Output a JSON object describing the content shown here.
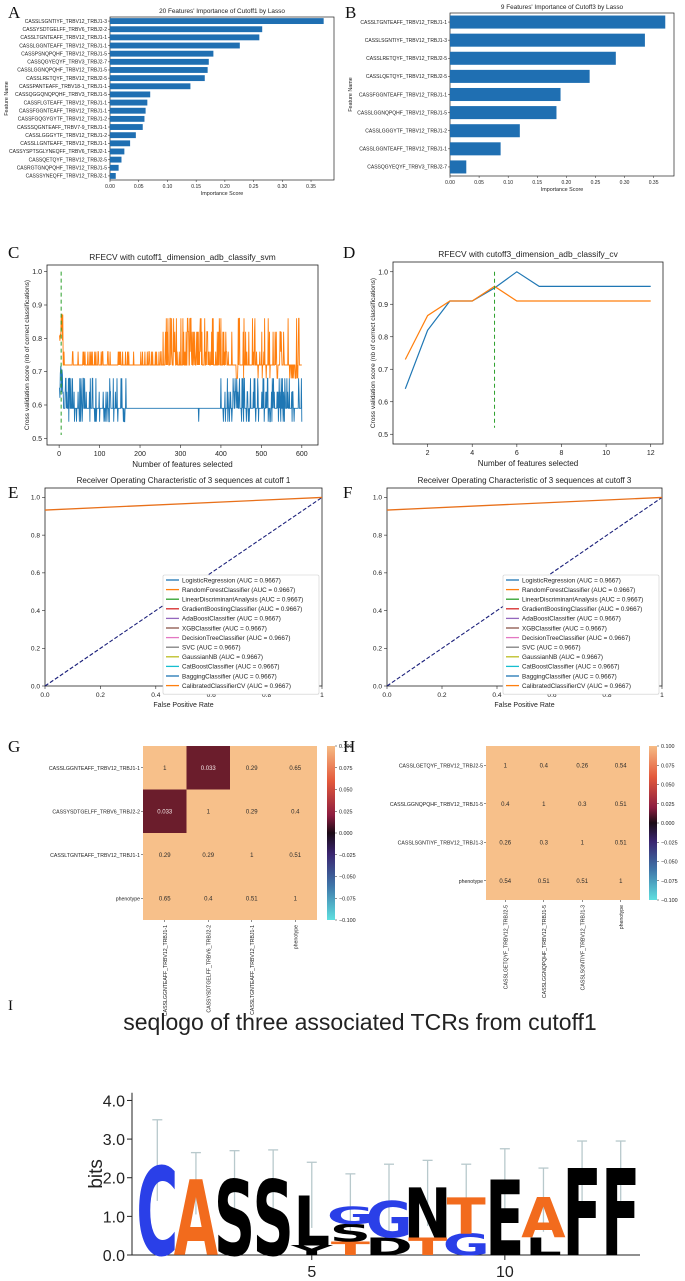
{
  "chart_data": [
    {
      "panel": "A",
      "type": "bar",
      "orientation": "horizontal",
      "title": "20 Features' Importance of Cutoff1 by Lasso",
      "xlabel": "Importance Score",
      "ylabel": "Feature Name",
      "xlim": [
        0,
        0.39
      ],
      "xticks": [
        "0.00",
        "0.05",
        "0.10",
        "0.15",
        "0.20",
        "0.25",
        "0.30",
        "0.35"
      ],
      "categories": [
        "CASSLSGNTIYF_TRBV12_TRBJ1-3",
        "CASSYSDTGELFF_TRBV6_TRBJ2-2",
        "CASSLTGNTEAFF_TRBV12_TRBJ1-1",
        "CASSLGGNTEAFF_TRBV12_TRBJ1-1",
        "CASSPSNQPQHF_TRBV12_TRBJ1-5",
        "CASSQGYEQYF_TRBV3_TRBJ2-7",
        "CASSLGGNQPQHF_TRBV12_TRBJ1-5",
        "CASSLRETQYF_TRBV12_TRBJ2-5",
        "CASSPANTEAFF_TRBV18-1_TRBJ1-1",
        "CASSQGGQNQPQHF_TRBV3_TRBJ1-5",
        "CASSFLGTEAFF_TRBV12_TRBJ1-1",
        "CASSFGGNTEAFF_TRBV12_TRBJ1-1",
        "CASSFGQGYGYTF_TRBV12_TRBJ1-2",
        "CASSSQGNTEAFF_TRBV7-9_TRBJ1-1",
        "CASSLGGGYTF_TRBV12_TRBJ1-2",
        "CASSLLGNTEAFF_TRBV12_TRBJ1-1",
        "CASSYSPTSGLYNEQFF_TRBV6_TRBJ2-1",
        "CASSQETQYF_TRBV12_TRBJ2-5",
        "CASRGTGNQPQHF_TRBV12_TRBJ1-5",
        "CASSSYNEQFF_TRBV12_TRBJ2-1"
      ],
      "values": [
        0.372,
        0.265,
        0.26,
        0.226,
        0.18,
        0.172,
        0.17,
        0.165,
        0.14,
        0.07,
        0.065,
        0.062,
        0.06,
        0.057,
        0.045,
        0.035,
        0.025,
        0.02,
        0.015,
        0.01
      ]
    },
    {
      "panel": "B",
      "type": "bar",
      "orientation": "horizontal",
      "title": "9 Features' Importance of Cutoff3 by Lasso",
      "xlabel": "Importance Score",
      "ylabel": "Feature Name",
      "xlim": [
        0,
        0.385
      ],
      "xticks": [
        "0.00",
        "0.05",
        "0.10",
        "0.15",
        "0.20",
        "0.25",
        "0.30",
        "0.35"
      ],
      "categories": [
        "CASSLTGNTEAFF_TRBV12_TRBJ1-1",
        "CASSLSGNTIYF_TRBV12_TRBJ1-3",
        "CASSLRETQYF_TRBV12_TRBJ2-5",
        "CASSLQETQYF_TRBV12_TRBJ2-5",
        "CASSFGGNTEAFF_TRBV12_TRBJ1-1",
        "CASSLGGNQPQHF_TRBV12_TRBJ1-5",
        "CASSLGGGYTF_TRBV12_TRBJ1-2",
        "CASSLGGNTEAFF_TRBV12_TRBJ1-1",
        "CASSQGYEQYF_TRBV3_TRBJ2-7"
      ],
      "values": [
        0.37,
        0.335,
        0.285,
        0.24,
        0.19,
        0.183,
        0.12,
        0.087,
        0.028
      ]
    },
    {
      "panel": "C",
      "type": "line",
      "title": "RFECV with cutoff1_dimension_adb_classify_svm",
      "xlabel": "Number of features selected",
      "ylabel": "Cross validation score (nb of correct classifications)",
      "xlim": [
        -30,
        640
      ],
      "ylim": [
        0.48,
        1.02
      ],
      "xticks": [
        0,
        100,
        200,
        300,
        400,
        500,
        600
      ],
      "yticks": [
        "0.5",
        "0.6",
        "0.7",
        "0.8",
        "0.9",
        "1.0"
      ],
      "optimal_features": 5,
      "series": [
        {
          "name": "orange",
          "color": "#ff7f0e",
          "base": 0.72,
          "low": 0.72,
          "high": [
            0.76,
            0.82,
            0.86
          ],
          "start_peak": 0.91
        },
        {
          "name": "blue",
          "color": "#1f77b4",
          "base": 0.59,
          "low": [
            0.55,
            0.59
          ],
          "high": [
            0.64,
            0.68
          ],
          "start_peak": 0.73
        }
      ]
    },
    {
      "panel": "D",
      "type": "line",
      "title": "RFECV with cutoff3_dimension_adb_classify_cv",
      "xlabel": "Number of features selected",
      "ylabel": "Cross validation score (nb of correct classifications)",
      "xlim": [
        0.45,
        12.55
      ],
      "ylim": [
        0.47,
        1.03
      ],
      "xticks": [
        2,
        4,
        6,
        8,
        10,
        12
      ],
      "yticks": [
        "0.5",
        "0.6",
        "0.7",
        "0.8",
        "0.9",
        "1.0"
      ],
      "optimal_features": 5,
      "x": [
        1,
        2,
        3,
        4,
        5,
        6,
        7,
        8,
        9,
        10,
        11,
        12
      ],
      "series": [
        {
          "name": "blue",
          "color": "#1f77b4",
          "values": [
            0.64,
            0.82,
            0.91,
            0.91,
            0.95,
            1.0,
            0.955,
            0.955,
            0.955,
            0.955,
            0.955,
            0.955
          ]
        },
        {
          "name": "orange",
          "color": "#ff7f0e",
          "values": [
            0.73,
            0.865,
            0.91,
            0.91,
            0.955,
            0.91,
            0.91,
            0.91,
            0.91,
            0.91,
            0.91,
            0.91
          ]
        }
      ]
    },
    {
      "panel": "E",
      "type": "line",
      "title": "Receiver Operating Characteristic of 3 sequences at cutoff 1",
      "xlabel": "False Positive Rate",
      "ylabel": "",
      "xlim": [
        0,
        1
      ],
      "ylim": [
        0,
        1.05
      ],
      "xticks": [
        "0.0",
        "0.2",
        "0.4",
        "0.6",
        "0.8",
        "1"
      ],
      "yticks": [
        "0.0",
        "0.2",
        "0.4",
        "0.6",
        "0.8",
        "1.0"
      ],
      "roc_points": [
        [
          0,
          0.933
        ],
        [
          1,
          1
        ]
      ],
      "diagonal": [
        [
          0,
          0
        ],
        [
          1,
          1
        ]
      ],
      "legend": [
        "LogisticRegression (AUC = 0.9667)",
        "RandomForestClassifier (AUC = 0.9667)",
        "LinearDiscriminantAnalysis (AUC = 0.9667)",
        "GradientBoostingClassifier (AUC = 0.9667)",
        "AdaBoostClassifier (AUC = 0.9667)",
        "XGBClassifier (AUC = 0.9667)",
        "DecisionTreeClassifier (AUC = 0.9667)",
        "SVC (AUC = 0.9667)",
        "GaussianNB (AUC = 0.9667)",
        "CatBoostClassifier (AUC = 0.9667)",
        "BaggingClassifier (AUC = 0.9667)",
        "CalibratedClassifierCV (AUC = 0.9667)"
      ],
      "legend_colors": [
        "#1f77b4",
        "#ff7f0e",
        "#2ca02c",
        "#d62728",
        "#9467bd",
        "#8c564b",
        "#e377c2",
        "#7f7f7f",
        "#bcbd22",
        "#17becf",
        "#1f77b4",
        "#ff7f0e"
      ]
    },
    {
      "panel": "F",
      "type": "line",
      "title": "Receiver Operating Characteristic of 3 sequences at cutoff 3",
      "xlabel": "False Positive Rate",
      "ylabel": "",
      "xlim": [
        0,
        1
      ],
      "ylim": [
        0,
        1.05
      ],
      "xticks": [
        "0.0",
        "0.2",
        "0.4",
        "0.6",
        "0.8",
        "1"
      ],
      "yticks": [
        "0.0",
        "0.2",
        "0.4",
        "0.6",
        "0.8",
        "1.0"
      ],
      "roc_points": [
        [
          0,
          0.933
        ],
        [
          1,
          1
        ]
      ],
      "diagonal": [
        [
          0,
          0
        ],
        [
          1,
          1
        ]
      ],
      "legend": [
        "LogisticRegression (AUC = 0.9667)",
        "RandomForestClassifier (AUC = 0.9667)",
        "LinearDiscriminantAnalysis (AUC = 0.9667)",
        "GradientBoostingClassifier (AUC = 0.9667)",
        "AdaBoostClassifier (AUC = 0.9667)",
        "XGBClassifier (AUC = 0.9667)",
        "DecisionTreeClassifier (AUC = 0.9667)",
        "SVC (AUC = 0.9667)",
        "GaussianNB (AUC = 0.9667)",
        "CatBoostClassifier (AUC = 0.9667)",
        "BaggingClassifier (AUC = 0.9667)",
        "CalibratedClassifierCV (AUC = 0.9667)"
      ],
      "legend_colors": [
        "#1f77b4",
        "#ff7f0e",
        "#2ca02c",
        "#d62728",
        "#9467bd",
        "#8c564b",
        "#e377c2",
        "#7f7f7f",
        "#bcbd22",
        "#17becf",
        "#1f77b4",
        "#ff7f0e"
      ]
    },
    {
      "panel": "G",
      "type": "heatmap",
      "rows": [
        "CASSLGGNTEAFF_TRBV12_TRBJ1-1",
        "CASSYSDTGELFF_TRBV6_TRBJ2-2",
        "CASSLTGNTEAFF_TRBV12_TRBJ1-1",
        "phenotype"
      ],
      "cols": [
        "CASSLGGNTEAFF_TRBV12_TRBJ1-1",
        "CASSYSDTGELFF_TRBV6_TRBJ2-2",
        "CASSLTGNTEAFF_TRBV12_TRBJ1-1",
        "phenotype"
      ],
      "values": [
        [
          1,
          0.033,
          0.29,
          0.65
        ],
        [
          0.033,
          1,
          0.29,
          0.4
        ],
        [
          0.29,
          0.29,
          1,
          0.51
        ],
        [
          0.65,
          0.4,
          0.51,
          1
        ]
      ],
      "labels": [
        [
          "1",
          "0.033",
          "0.29",
          "0.65"
        ],
        [
          "0.033",
          "1",
          "0.29",
          "0.4"
        ],
        [
          "0.29",
          "0.29",
          "1",
          "0.51"
        ],
        [
          "0.65",
          "0.4",
          "0.51",
          "1"
        ]
      ],
      "colorbar_ticks": [
        "0.100",
        "0.075",
        "0.050",
        "0.025",
        "0.000",
        "−0.025",
        "−0.050",
        "−0.075",
        "−0.100"
      ],
      "colors": {
        "high": "#f7c08a",
        "low": "#6b1d2c"
      }
    },
    {
      "panel": "H",
      "type": "heatmap",
      "rows": [
        "CASSLGETQYF_TRBV12_TRBJ2-5",
        "CASSLGGNQPQHF_TRBV12_TRBJ1-5",
        "CASSLSGNTIYF_TRBV12_TRBJ1-3",
        "phenotype"
      ],
      "cols": [
        "CASSLGETQYF_TRBV12_TRBJ2-5",
        "CASSLGGNQPQHF_TRBV12_TRBJ1-5",
        "CASSLSGNTIYF_TRBV12_TRBJ1-3",
        "phenotype"
      ],
      "values": [
        [
          1,
          0.4,
          0.26,
          0.54
        ],
        [
          0.4,
          1,
          0.3,
          0.51
        ],
        [
          0.26,
          0.3,
          1,
          0.51
        ],
        [
          0.54,
          0.51,
          0.51,
          1
        ]
      ],
      "labels": [
        [
          "1",
          "0.4",
          "0.26",
          "0.54"
        ],
        [
          "0.4",
          "1",
          "0.3",
          "0.51"
        ],
        [
          "0.26",
          "0.3",
          "1",
          "0.51"
        ],
        [
          "0.54",
          "0.51",
          "0.51",
          "1"
        ]
      ],
      "colorbar_ticks": [
        "0.100",
        "0.075",
        "0.050",
        "0.025",
        "0.000",
        "−0.025",
        "−0.050",
        "−0.075",
        "−0.100"
      ],
      "colors": {
        "high": "#f7c08a"
      }
    },
    {
      "panel": "I",
      "type": "seqlogo",
      "title": "seqlogo of three associated TCRs from cutoff1",
      "ylabel": "bits",
      "ylim": [
        0,
        4.4
      ],
      "yticks": [
        "0.0",
        "1.0",
        "2.0",
        "3.0",
        "4.0"
      ],
      "xticks": [
        {
          "pos": 5,
          "label": "5"
        },
        {
          "pos": 10,
          "label": "10"
        }
      ],
      "positions": [
        {
          "err_top": 3.5,
          "err_bottom": 1.4,
          "stack": [
            {
              "letter": "C",
              "height": 2.3,
              "color": "#2a3fe8"
            }
          ]
        },
        {
          "err_top": 2.65,
          "err_bottom": 1.05,
          "stack": [
            {
              "letter": "A",
              "height": 1.95,
              "color": "#f26b1d"
            }
          ]
        },
        {
          "err_top": 2.7,
          "err_bottom": 1.05,
          "stack": [
            {
              "letter": "S",
              "height": 1.95,
              "color": "#000000"
            }
          ]
        },
        {
          "err_top": 2.72,
          "err_bottom": 1.05,
          "stack": [
            {
              "letter": "S",
              "height": 1.95,
              "color": "#000000"
            }
          ]
        },
        {
          "err_top": 2.4,
          "err_bottom": 0.7,
          "stack": [
            {
              "letter": "Y",
              "height": 0.25,
              "color": "#000000"
            },
            {
              "letter": "L",
              "height": 1.3,
              "color": "#000000"
            }
          ]
        },
        {
          "err_top": 2.1,
          "err_bottom": 0.55,
          "stack": [
            {
              "letter": "T",
              "height": 0.35,
              "color": "#f26b1d"
            },
            {
              "letter": "S",
              "height": 0.45,
              "color": "#000000"
            },
            {
              "letter": "G",
              "height": 0.45,
              "color": "#2a3fe8"
            }
          ]
        },
        {
          "err_top": 2.35,
          "err_bottom": 0.55,
          "stack": [
            {
              "letter": "D",
              "height": 0.45,
              "color": "#000000"
            },
            {
              "letter": "G",
              "height": 0.95,
              "color": "#2a3fe8"
            }
          ]
        },
        {
          "err_top": 2.45,
          "err_bottom": 0.75,
          "stack": [
            {
              "letter": "T",
              "height": 0.45,
              "color": "#f26b1d"
            },
            {
              "letter": "N",
              "height": 1.3,
              "color": "#000000"
            }
          ]
        },
        {
          "err_top": 2.35,
          "err_bottom": 0.55,
          "stack": [
            {
              "letter": "G",
              "height": 0.55,
              "color": "#2a3fe8"
            },
            {
              "letter": "T",
              "height": 0.95,
              "color": "#f26b1d"
            }
          ]
        },
        {
          "err_top": 2.75,
          "err_bottom": 1.1,
          "stack": [
            {
              "letter": "E",
              "height": 1.95,
              "color": "#000000"
            }
          ]
        },
        {
          "err_top": 2.25,
          "err_bottom": 0.6,
          "stack": [
            {
              "letter": "L",
              "height": 0.45,
              "color": "#000000"
            },
            {
              "letter": "A",
              "height": 1.05,
              "color": "#f26b1d"
            }
          ]
        },
        {
          "err_top": 2.95,
          "err_bottom": 1.4,
          "stack": [
            {
              "letter": "F",
              "height": 2.25,
              "color": "#000000"
            }
          ]
        },
        {
          "err_top": 2.95,
          "err_bottom": 1.4,
          "stack": [
            {
              "letter": "F",
              "height": 2.25,
              "color": "#000000"
            }
          ]
        }
      ]
    }
  ]
}
